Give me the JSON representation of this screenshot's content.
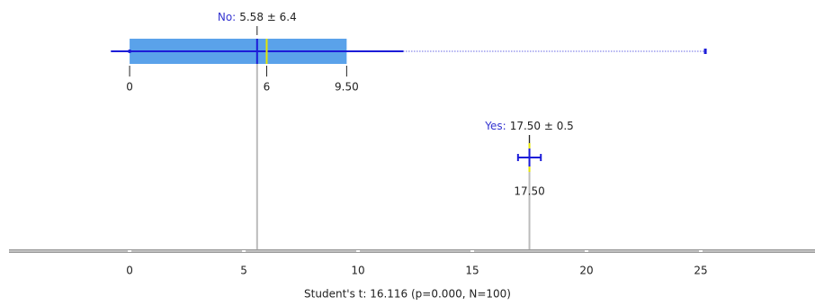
{
  "chart_data": {
    "type": "boxplot",
    "x_label": "Student's t: 16.116 (p=0.000, N=100)",
    "xlim": [
      -5.28,
      30
    ],
    "xticks": [
      0,
      5,
      10,
      15,
      20,
      25
    ],
    "box_color": "#5aa2ea",
    "line_color": "#1c1cd8",
    "median_color": "#e6e600",
    "name_color": "#3434d0",
    "groups": [
      {
        "name": "No:",
        "stat_label": "5.58 ± 6.4",
        "mean": 5.58,
        "sd": 6.4,
        "min": 0,
        "max": 25.2,
        "q1": 0,
        "q3": 9.5,
        "median": 6,
        "labelled": {
          "values": [
            0,
            6,
            9.5
          ],
          "value_labels": [
            "0",
            "6",
            "9.50"
          ]
        }
      },
      {
        "name": "Yes:",
        "stat_label": "17.50 ± 0.5",
        "mean": 17.5,
        "sd": 0.5,
        "median": 17.5,
        "labelled": {
          "values": [
            17.5
          ],
          "value_labels": [
            "17.50"
          ]
        }
      }
    ]
  }
}
